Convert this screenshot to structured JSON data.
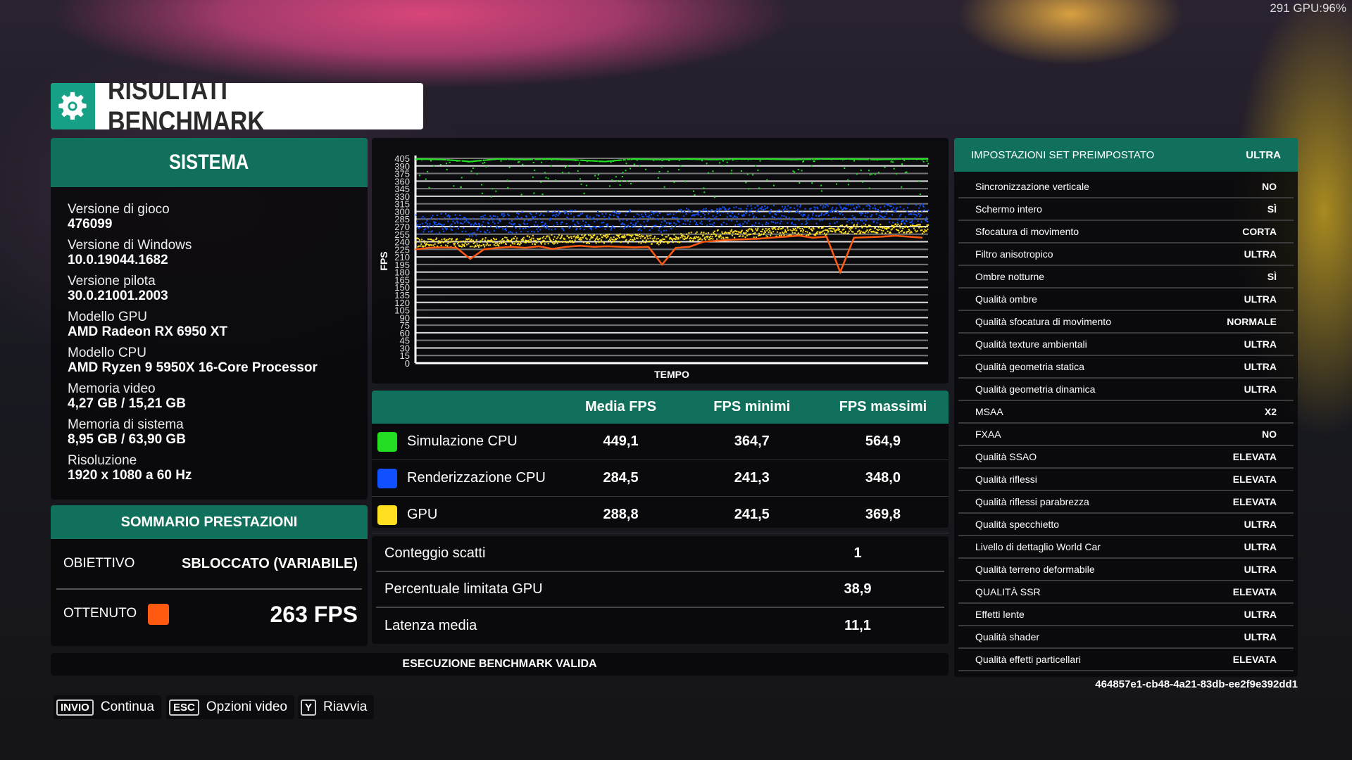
{
  "overlay": {
    "fps_gpu": "291 GPU:96%"
  },
  "title": {
    "text": "RISULTATI BENCHMARK",
    "icon": "gear-icon"
  },
  "colors": {
    "accent": "#10705c",
    "gear_bg": "#16a085",
    "sim_cpu": "#22dd22",
    "render_cpu": "#1050ff",
    "gpu": "#ffe020",
    "achieved": "#ff5a10"
  },
  "system": {
    "title": "SISTEMA",
    "items": [
      {
        "label": "Versione di gioco",
        "value": "476099"
      },
      {
        "label": "Versione di Windows",
        "value": "10.0.19044.1682"
      },
      {
        "label": "Versione pilota",
        "value": "30.0.21001.2003"
      },
      {
        "label": "Modello GPU",
        "value": "AMD Radeon RX 6950 XT"
      },
      {
        "label": "Modello CPU",
        "value": "AMD Ryzen 9 5950X 16-Core Processor"
      },
      {
        "label": "Memoria video",
        "value": "4,27 GB / 15,21 GB"
      },
      {
        "label": "Memoria di sistema",
        "value": "8,95 GB / 63,90 GB"
      },
      {
        "label": "Risoluzione",
        "value": "1920 x 1080 a 60 Hz"
      }
    ]
  },
  "summary": {
    "title": "SOMMARIO PRESTAZIONI",
    "target_label": "OBIETTIVO",
    "target_value": "SBLOCCATO (VARIABILE)",
    "achieved_label": "OTTENUTO",
    "achieved_value": "263 FPS"
  },
  "chart_data": {
    "type": "scatter",
    "xlabel": "TEMPO",
    "ylabel": "FPS",
    "ylim": [
      0,
      405
    ],
    "yticks": [
      "0",
      "15",
      "30",
      "45",
      "60",
      "75",
      "90",
      "105",
      "120",
      "135",
      "150",
      "165",
      "180",
      "195",
      "210",
      "225",
      "240",
      "255",
      "270",
      "285",
      "300",
      "315",
      "330",
      "345",
      "360",
      "375",
      "390",
      "405"
    ],
    "grid": true,
    "series": [
      {
        "name": "Simulazione CPU",
        "color": "#22dd22",
        "trend": [
          405,
          404,
          400,
          405,
          404,
          405,
          403,
          400,
          405,
          404,
          405,
          404,
          405,
          405,
          404,
          405,
          405,
          404,
          405,
          405
        ]
      },
      {
        "name": "Renderizzazione CPU",
        "color": "#1050ff",
        "trend": [
          275,
          278,
          272,
          278,
          280,
          282,
          285,
          283,
          285,
          280,
          288,
          290,
          292,
          294,
          295,
          296,
          298,
          297,
          296,
          298
        ]
      },
      {
        "name": "GPU",
        "color": "#ffe020",
        "trend": [
          240,
          240,
          238,
          242,
          244,
          246,
          246,
          247,
          248,
          245,
          250,
          255,
          258,
          260,
          262,
          263,
          266,
          266,
          268,
          266
        ]
      },
      {
        "color": "#ff5a10",
        "line": [
          225,
          228,
          229,
          228,
          206,
          225,
          228,
          230,
          228,
          231,
          226,
          230,
          232,
          230,
          231,
          230,
          229,
          230,
          195,
          228,
          230,
          240,
          242,
          244,
          245,
          246,
          248,
          250,
          252,
          248,
          250,
          180,
          248,
          249,
          250,
          252,
          250,
          248
        ]
      }
    ]
  },
  "table": {
    "headers": [
      "",
      "Media FPS",
      "FPS minimi",
      "FPS massimi"
    ],
    "rows": [
      {
        "name": "Simulazione CPU",
        "avg": "449,1",
        "min": "364,7",
        "max": "564,9",
        "color": "#22dd22"
      },
      {
        "name": "Renderizzazione CPU",
        "avg": "284,5",
        "min": "241,3",
        "max": "348,0",
        "color": "#1050ff"
      },
      {
        "name": "GPU",
        "avg": "288,8",
        "min": "241,5",
        "max": "369,8",
        "color": "#ffe020"
      }
    ]
  },
  "stats": [
    {
      "label": "Conteggio scatti",
      "value": "1"
    },
    {
      "label": "Percentuale limitata GPU",
      "value": "38,9"
    },
    {
      "label": "Latenza media",
      "value": "11,1"
    }
  ],
  "validation": "ESECUZIONE BENCHMARK VALIDA",
  "settings": {
    "header_label": "IMPOSTAZIONI SET PREIMPOSTATO",
    "header_value": "ULTRA",
    "rows": [
      {
        "label": "Sincronizzazione verticale",
        "value": "NO"
      },
      {
        "label": "Schermo intero",
        "value": "SÌ"
      },
      {
        "label": "Sfocatura di movimento",
        "value": "CORTA"
      },
      {
        "label": "Filtro anisotropico",
        "value": "ULTRA"
      },
      {
        "label": "Ombre notturne",
        "value": "SÌ"
      },
      {
        "label": "Qualità ombre",
        "value": "ULTRA"
      },
      {
        "label": "Qualità sfocatura di movimento",
        "value": "NORMALE"
      },
      {
        "label": "Qualità texture ambientali",
        "value": "ULTRA"
      },
      {
        "label": "Qualità geometria statica",
        "value": "ULTRA"
      },
      {
        "label": "Qualità geometria dinamica",
        "value": "ULTRA"
      },
      {
        "label": "MSAA",
        "value": "X2"
      },
      {
        "label": "FXAA",
        "value": "NO"
      },
      {
        "label": "Qualità SSAO",
        "value": "ELEVATA"
      },
      {
        "label": "Qualità riflessi",
        "value": "ELEVATA"
      },
      {
        "label": "Qualità riflessi parabrezza",
        "value": "ELEVATA"
      },
      {
        "label": "Qualità specchietto",
        "value": "ULTRA"
      },
      {
        "label": "Livello di dettaglio World Car",
        "value": "ULTRA"
      },
      {
        "label": "Qualità terreno deformabile",
        "value": "ULTRA"
      },
      {
        "label": "QUALITÀ SSR",
        "value": "ELEVATA"
      },
      {
        "label": "Effetti lente",
        "value": "ULTRA"
      },
      {
        "label": "Qualità shader",
        "value": "ULTRA"
      },
      {
        "label": "Qualità effetti particellari",
        "value": "ELEVATA"
      }
    ]
  },
  "uuid": "464857e1-cb48-4a21-83db-ee2f9e392dd1",
  "buttons": [
    {
      "key": "INVIO",
      "label": "Continua"
    },
    {
      "key": "ESC",
      "label": "Opzioni video"
    },
    {
      "key": "Y",
      "label": "Riavvia"
    }
  ]
}
